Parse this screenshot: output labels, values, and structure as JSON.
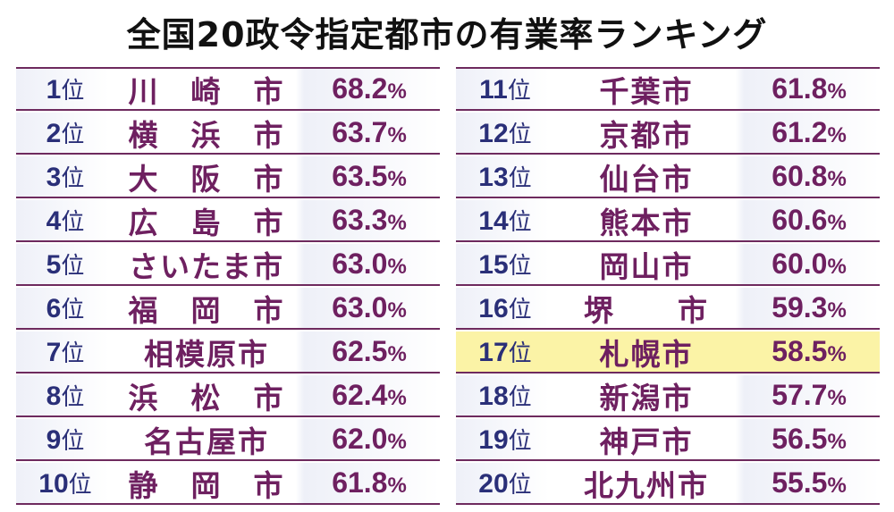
{
  "title": "全国20政令指定都市の有業率ランキング",
  "unit_rank": "位",
  "unit_pct": "%",
  "left": [
    {
      "rank": "1",
      "city": "川　崎　市",
      "rate": "68.2"
    },
    {
      "rank": "2",
      "city": "横　浜　市",
      "rate": "63.7"
    },
    {
      "rank": "3",
      "city": "大　阪　市",
      "rate": "63.5"
    },
    {
      "rank": "4",
      "city": "広　島　市",
      "rate": "63.3"
    },
    {
      "rank": "5",
      "city": "さいたま市",
      "rate": "63.0"
    },
    {
      "rank": "6",
      "city": "福　岡　市",
      "rate": "63.0"
    },
    {
      "rank": "7",
      "city": "相模原市",
      "rate": "62.5"
    },
    {
      "rank": "8",
      "city": "浜　松　市",
      "rate": "62.4"
    },
    {
      "rank": "9",
      "city": "名古屋市",
      "rate": "62.0"
    },
    {
      "rank": "10",
      "city": "静　岡　市",
      "rate": "61.8"
    }
  ],
  "right": [
    {
      "rank": "11",
      "city": "千葉市",
      "rate": "61.8"
    },
    {
      "rank": "12",
      "city": "京都市",
      "rate": "61.2"
    },
    {
      "rank": "13",
      "city": "仙台市",
      "rate": "60.8"
    },
    {
      "rank": "14",
      "city": "熊本市",
      "rate": "60.6"
    },
    {
      "rank": "15",
      "city": "岡山市",
      "rate": "60.0"
    },
    {
      "rank": "16",
      "city": "堺　　市",
      "rate": "59.3"
    },
    {
      "rank": "17",
      "city": "札幌市",
      "rate": "58.5",
      "highlight": true
    },
    {
      "rank": "18",
      "city": "新潟市",
      "rate": "57.7"
    },
    {
      "rank": "19",
      "city": "神戸市",
      "rate": "56.5"
    },
    {
      "rank": "20",
      "city": "北九州市",
      "rate": "55.5"
    }
  ],
  "colors": {
    "rank_text": "#2a2f78",
    "city_text": "#6e2060",
    "rule": "#6e2a5e",
    "highlight": "#fbf3a6"
  }
}
